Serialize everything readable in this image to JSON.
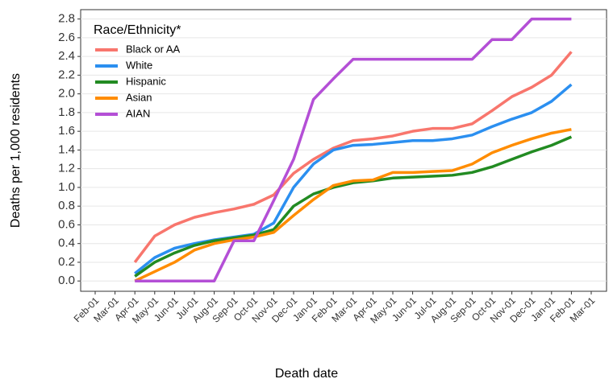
{
  "chart_data": {
    "type": "line",
    "x_label": "Death date",
    "y_label": "Deaths per 1,000 residents",
    "legend_title": "Race/Ethnicity*",
    "legend_position": "top-left",
    "grid": true,
    "categories": [
      "Feb-01",
      "Mar-01",
      "Apr-01",
      "May-01",
      "Jun-01",
      "Jul-01",
      "Aug-01",
      "Sep-01",
      "Oct-01",
      "Nov-01",
      "Dec-01",
      "Jan-01",
      "Feb-01",
      "Mar-01",
      "Apr-01",
      "May-01",
      "Jun-01",
      "Jul-01",
      "Aug-01",
      "Sep-01",
      "Oct-01",
      "Nov-01",
      "Dec-01",
      "Jan-01",
      "Feb-01",
      "Mar-01"
    ],
    "ylim": [
      -0.11,
      2.9
    ],
    "yticks": [
      {
        "value": 0,
        "label": "0.0"
      },
      {
        "value": 0.2,
        "label": "0.2"
      },
      {
        "value": 0.4,
        "label": "0.4"
      },
      {
        "value": 0.6,
        "label": "0.6"
      },
      {
        "value": 0.8,
        "label": "0.8"
      },
      {
        "value": 1,
        "label": "1.0"
      },
      {
        "value": 1.2,
        "label": "1.2"
      },
      {
        "value": 1.4,
        "label": "1.4"
      },
      {
        "value": 1.6,
        "label": "1.6"
      },
      {
        "value": 1.8,
        "label": "1.8"
      },
      {
        "value": 2,
        "label": "2.0"
      },
      {
        "value": 2.2,
        "label": "2.2"
      },
      {
        "value": 2.4,
        "label": "2.4"
      },
      {
        "value": 2.6,
        "label": "2.6"
      },
      {
        "value": 2.8,
        "label": "2.8"
      }
    ],
    "series": [
      {
        "name": "Black or AA",
        "color": "#f8766d",
        "values": [
          null,
          null,
          0.2,
          0.48,
          0.6,
          0.68,
          0.73,
          0.77,
          0.82,
          0.92,
          1.15,
          1.3,
          1.42,
          1.5,
          1.52,
          1.55,
          1.6,
          1.63,
          1.63,
          1.68,
          1.82,
          1.97,
          2.07,
          2.2,
          2.45,
          null
        ]
      },
      {
        "name": "White",
        "color": "#2b8ff0",
        "values": [
          null,
          null,
          0.08,
          0.25,
          0.35,
          0.4,
          0.44,
          0.47,
          0.5,
          0.62,
          1.0,
          1.25,
          1.4,
          1.45,
          1.46,
          1.48,
          1.5,
          1.5,
          1.52,
          1.56,
          1.65,
          1.73,
          1.8,
          1.92,
          2.1,
          null
        ]
      },
      {
        "name": "Hispanic",
        "color": "#228b22",
        "values": [
          null,
          null,
          0.05,
          0.2,
          0.3,
          0.38,
          0.43,
          0.46,
          0.49,
          0.55,
          0.8,
          0.93,
          1.0,
          1.05,
          1.07,
          1.1,
          1.11,
          1.12,
          1.13,
          1.16,
          1.22,
          1.3,
          1.38,
          1.45,
          1.54,
          null
        ]
      },
      {
        "name": "Asian",
        "color": "#ff8c00",
        "values": [
          null,
          null,
          0,
          0.1,
          0.2,
          0.33,
          0.4,
          0.44,
          0.47,
          0.52,
          0.7,
          0.87,
          1.02,
          1.07,
          1.08,
          1.16,
          1.16,
          1.17,
          1.18,
          1.25,
          1.37,
          1.45,
          1.52,
          1.58,
          1.62,
          null
        ]
      },
      {
        "name": "AIAN",
        "color": "#b44fd6",
        "values": [
          null,
          null,
          0,
          0,
          0,
          0,
          0,
          0.43,
          0.43,
          0.86,
          1.3,
          1.94,
          2.16,
          2.37,
          2.37,
          2.37,
          2.37,
          2.37,
          2.37,
          2.37,
          2.58,
          2.58,
          2.8,
          2.8,
          2.8,
          null
        ]
      }
    ]
  }
}
